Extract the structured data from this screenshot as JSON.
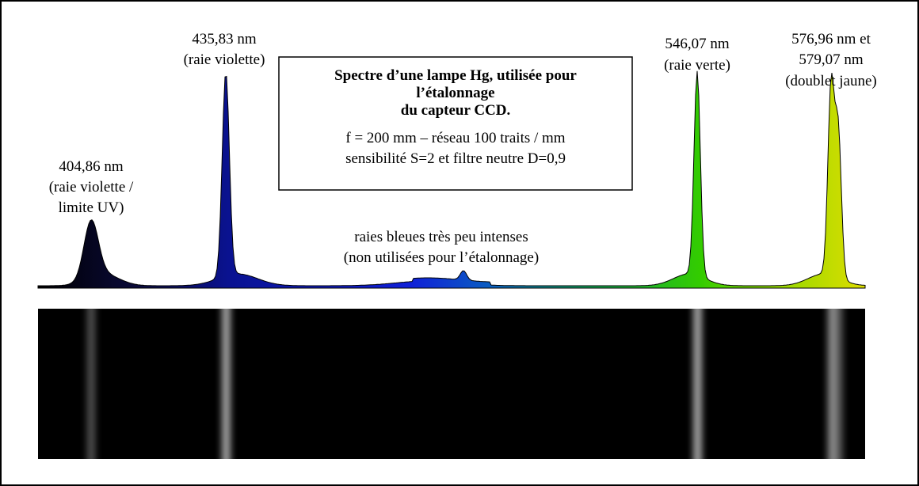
{
  "title_box": {
    "bold_lines": [
      "Spectre d’une lampe Hg, utilisée pour",
      "l’étalonnage",
      "du capteur CCD."
    ],
    "lines": [
      "f = 200 mm – réseau 100 traits / mm",
      "sensibilité S=2 et filtre neutre D=0,9"
    ]
  },
  "labels": [
    {
      "lines": [
        "404,86 nm",
        "(raie violette /",
        "limite UV)"
      ]
    },
    {
      "lines": [
        "435,83 nm",
        "(raie violette)"
      ]
    },
    {
      "lines": [
        "raies bleues très peu intenses",
        "(non utilisées pour l’étalonnage)"
      ]
    },
    {
      "lines": [
        "546,07 nm",
        "(raie verte)"
      ]
    },
    {
      "lines": [
        "576,96 nm et",
        "579,07 nm",
        "(doublet jaune)"
      ]
    }
  ]
}
